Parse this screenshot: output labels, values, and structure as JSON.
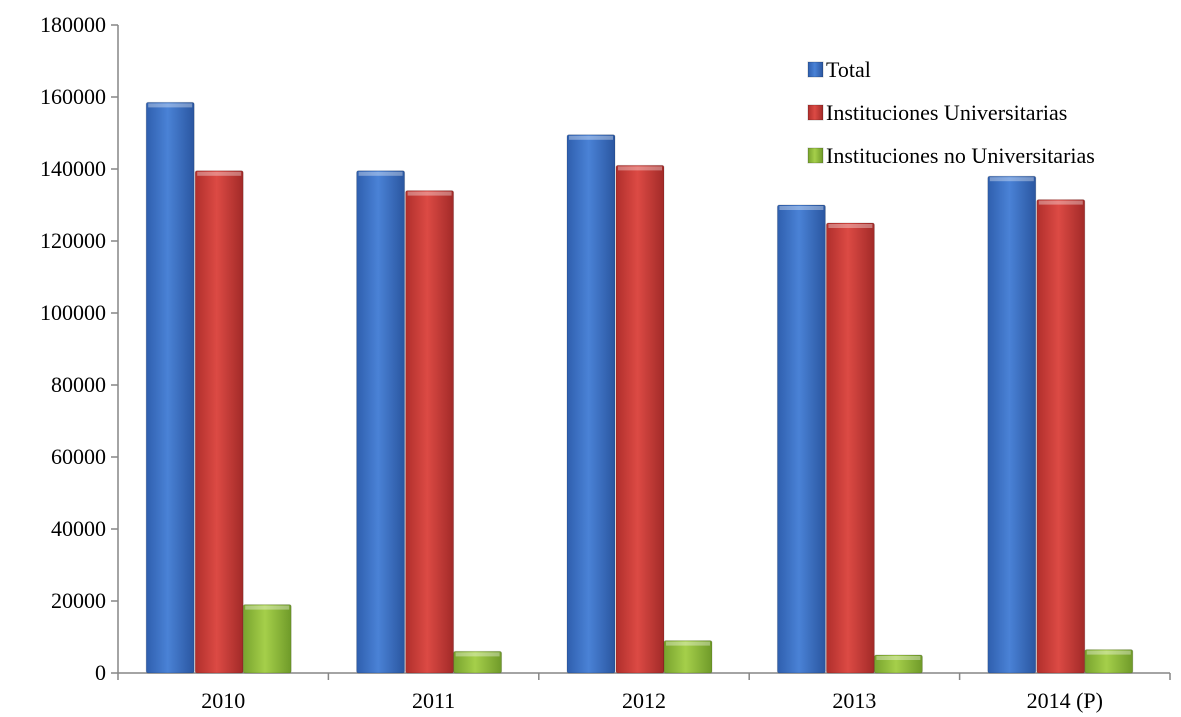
{
  "chart_data": {
    "type": "bar",
    "categories": [
      "2010",
      "2011",
      "2012",
      "2013",
      "2014 (P)"
    ],
    "series": [
      {
        "name": "Total",
        "values": [
          158500,
          139500,
          149500,
          130000,
          138000
        ],
        "color": "#3a6fc4"
      },
      {
        "name": "Instituciones Universitarias",
        "values": [
          139500,
          134000,
          141000,
          125000,
          131500
        ],
        "color": "#c83a36"
      },
      {
        "name": "Instituciones no Universitarias",
        "values": [
          19000,
          6000,
          9000,
          5000,
          6500
        ],
        "color": "#8db83b"
      }
    ],
    "title": "",
    "xlabel": "",
    "ylabel": "",
    "ylim": [
      0,
      180000
    ],
    "yticks": [
      0,
      20000,
      40000,
      60000,
      80000,
      100000,
      120000,
      140000,
      160000,
      180000
    ],
    "grid": false,
    "legend_position": "top-right"
  }
}
